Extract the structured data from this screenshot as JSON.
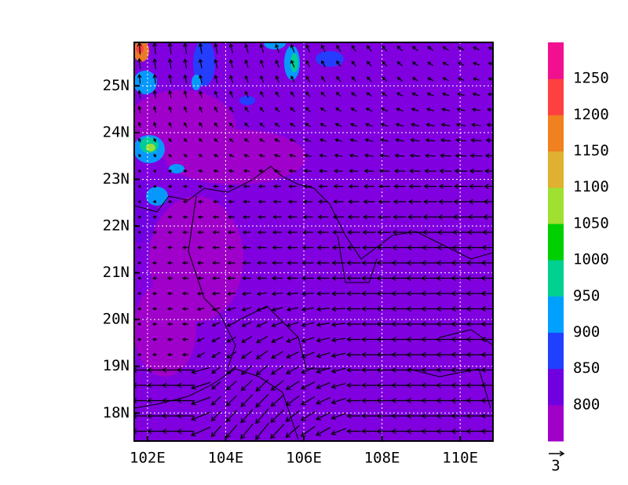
{
  "map": {
    "lon_ticks": [
      {
        "value": 102,
        "label": "102E"
      },
      {
        "value": 104,
        "label": "104E"
      },
      {
        "value": 106,
        "label": "106E"
      },
      {
        "value": 108,
        "label": "108E"
      },
      {
        "value": 110,
        "label": "110E"
      }
    ],
    "lat_ticks": [
      {
        "value": 18,
        "label": "18N"
      },
      {
        "value": 19,
        "label": "19N"
      },
      {
        "value": 20,
        "label": "20N"
      },
      {
        "value": 21,
        "label": "21N"
      },
      {
        "value": 22,
        "label": "22N"
      },
      {
        "value": 23,
        "label": "23N"
      },
      {
        "value": 24,
        "label": "24N"
      },
      {
        "value": 25,
        "label": "25N"
      }
    ],
    "lonlim": [
      101.66,
      110.84
    ],
    "latlim": [
      17.4,
      25.93
    ],
    "fill_color": "#8000e0",
    "grid": true
  },
  "colorbar": {
    "levels": [
      800,
      850,
      900,
      950,
      1000,
      1050,
      1100,
      1150,
      1200,
      1250
    ],
    "colors": [
      "#a000c8",
      "#7000e0",
      "#2040ff",
      "#00a0ff",
      "#00d090",
      "#00d000",
      "#a0e030",
      "#e0b030",
      "#f08020",
      "#ff4040",
      "#f01090"
    ]
  },
  "reference_vector": {
    "label": "3"
  }
}
